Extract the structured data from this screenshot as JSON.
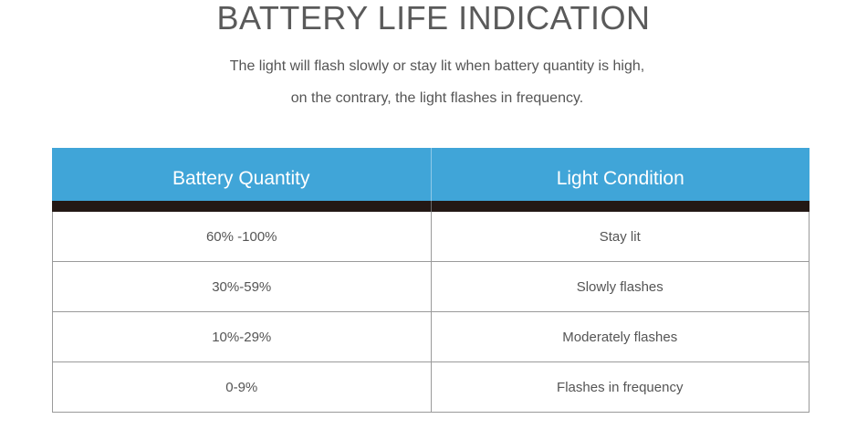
{
  "header": {
    "title": "BATTERY LIFE INDICATION",
    "subtitle_line1": "The light will flash slowly or stay lit when battery quantity is high,",
    "subtitle_line2": "on the contrary, the light flashes in frequency."
  },
  "table": {
    "columns": [
      "Battery Quantity",
      "Light Condition"
    ],
    "rows": [
      [
        "60% -100%",
        "Stay lit"
      ],
      [
        "30%-59%",
        "Slowly flashes"
      ],
      [
        "10%-29%",
        "Moderately flashes"
      ],
      [
        "0-9%",
        "Flashes in frequency"
      ]
    ]
  },
  "colors": {
    "header_bg": "#40a5d8",
    "dark_bar": "#231815",
    "text": "#555555"
  }
}
